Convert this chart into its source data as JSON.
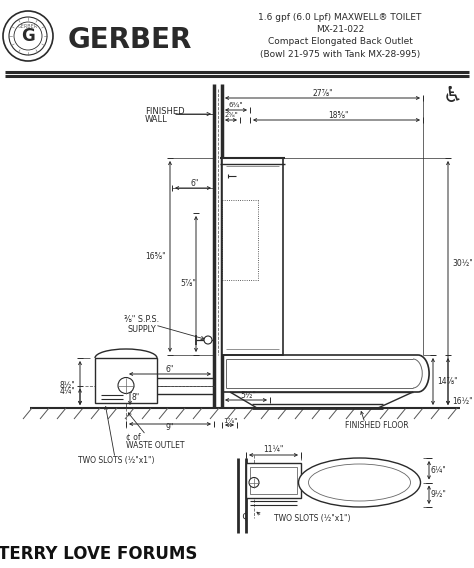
{
  "title_line1": "1.6 gpf (6.0 Lpf) MAXWELL® TOILET",
  "title_line2": "MX-21-022",
  "title_line3": "Compact Elongated Back Outlet",
  "title_line4": "(Bowl 21-975 with Tank MX-28-995)",
  "brand": "GERBER",
  "footer": "TERRY LOVE FORUMS",
  "bg_color": "#ffffff",
  "lc": "#2a2a2a",
  "dim_color": "#2a2a2a",
  "gray": "#666666",
  "light_gray": "#aaaaaa"
}
